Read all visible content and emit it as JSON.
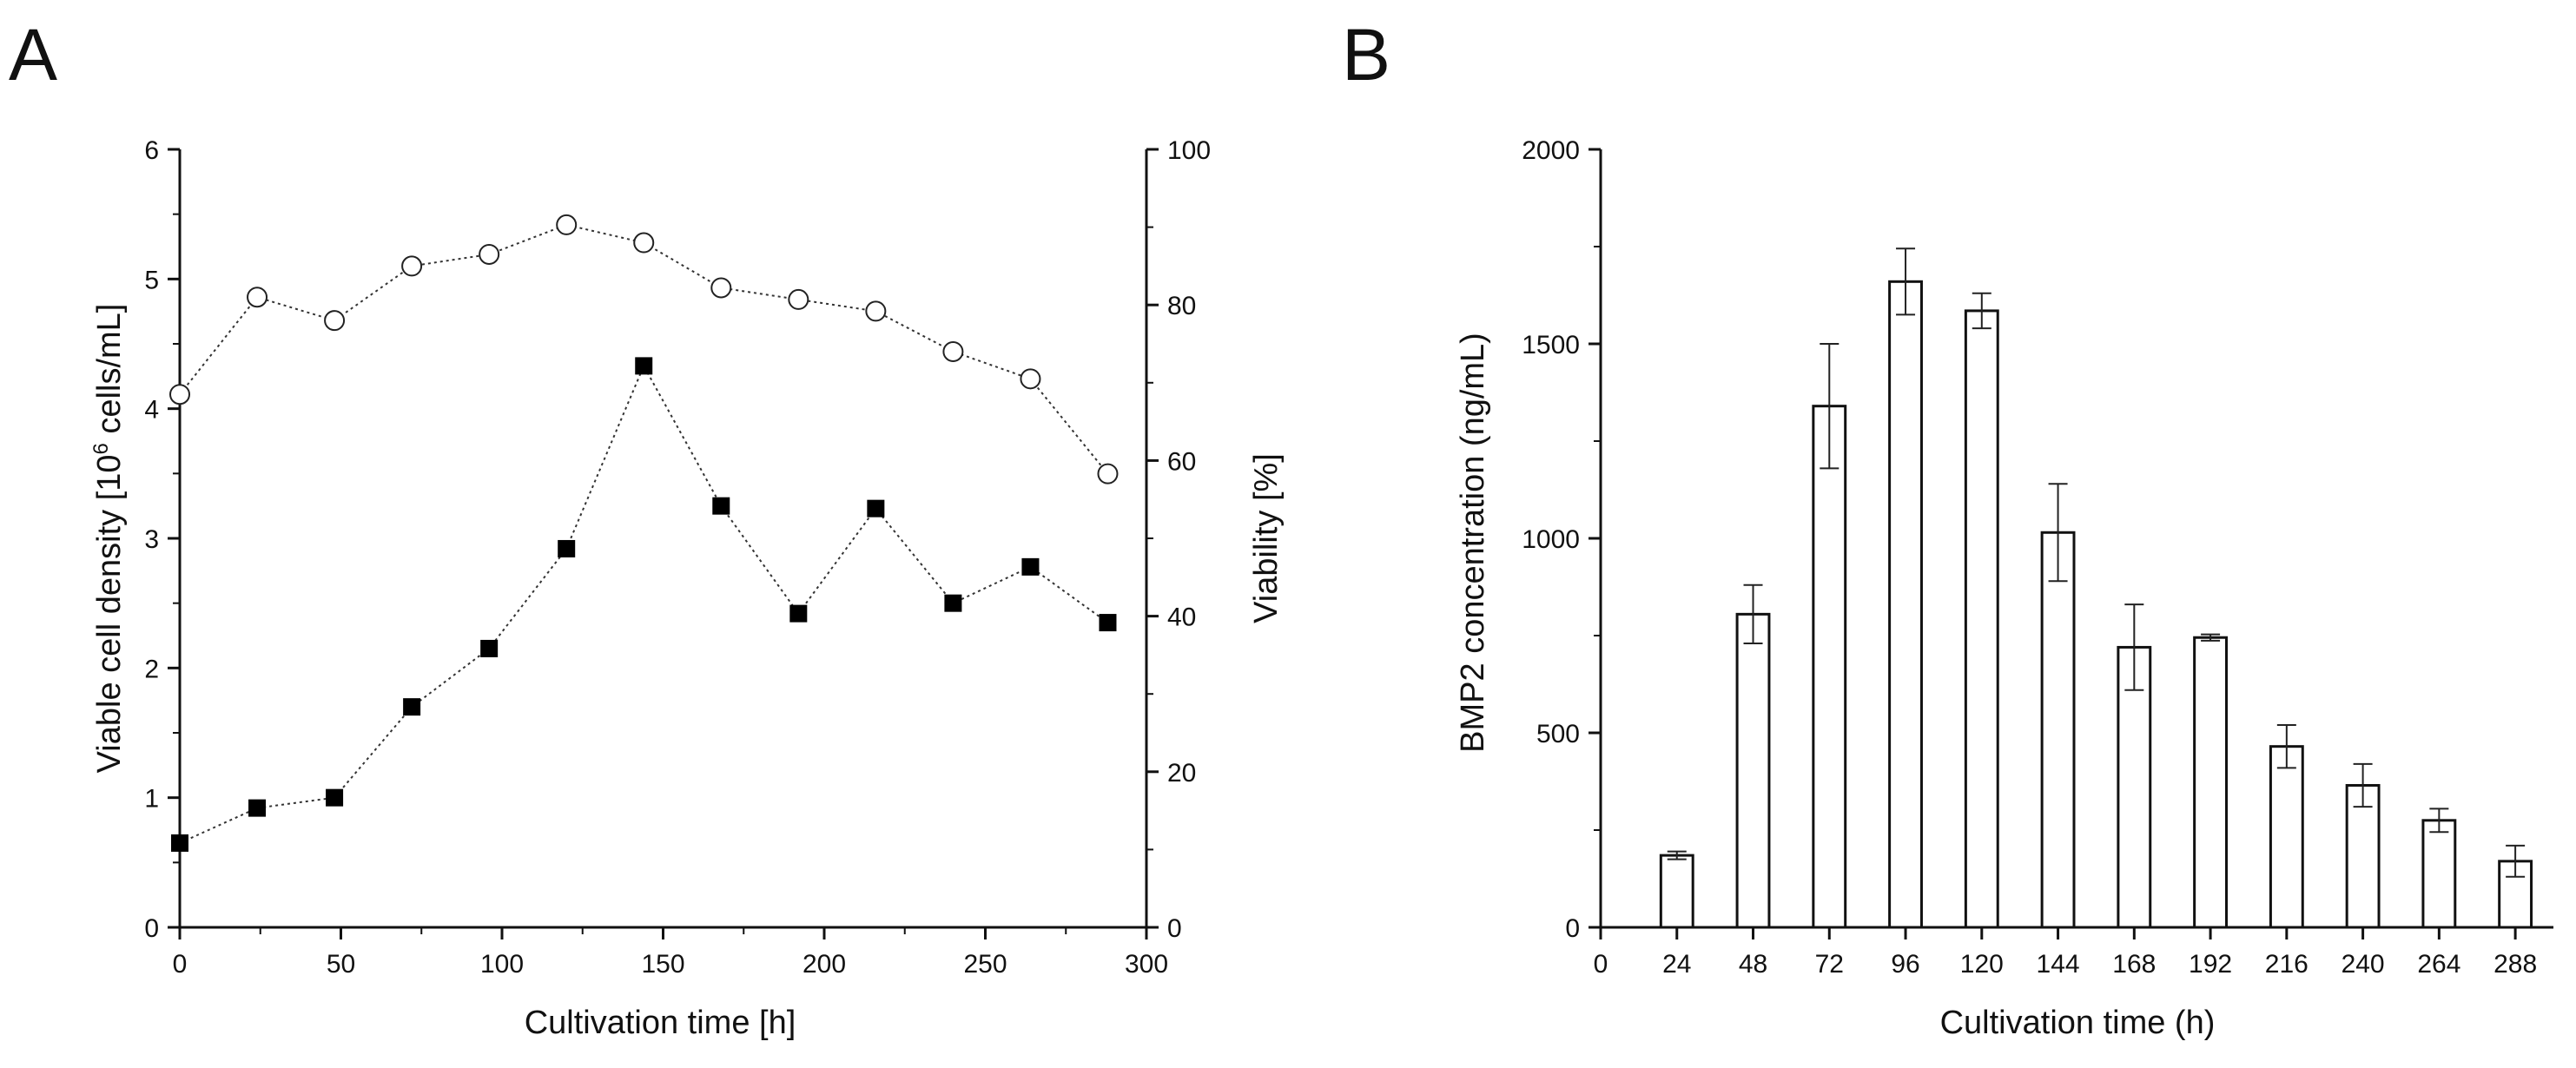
{
  "chart_data": [
    {
      "panel": "A",
      "type": "line",
      "xlabel": "Cultivation time [h]",
      "ylabel_left": "Viable cell density [10",
      "ylabel_left_sup": "6",
      "ylabel_left_tail": " cells/mL]",
      "ylabel_right": "Viability [%]",
      "xlim": [
        0,
        300
      ],
      "ylim_left": [
        0,
        6
      ],
      "ylim_right": [
        0,
        100
      ],
      "x_ticks": [
        "0",
        "50",
        "100",
        "150",
        "200",
        "250",
        "300"
      ],
      "y_left_ticks": [
        "0",
        "1",
        "2",
        "3",
        "4",
        "5",
        "6"
      ],
      "y_right_ticks": [
        "0",
        "20",
        "40",
        "60",
        "80",
        "100"
      ],
      "grid": false,
      "series": [
        {
          "name": "Viable cell density",
          "axis": "left",
          "marker": "filled-square",
          "line": "dotted",
          "x": [
            0,
            24,
            48,
            72,
            96,
            120,
            144,
            168,
            192,
            216,
            240,
            264,
            288
          ],
          "y": [
            0.65,
            0.92,
            1.0,
            1.7,
            2.15,
            2.92,
            4.33,
            3.25,
            2.42,
            3.23,
            2.5,
            2.78,
            2.35
          ]
        },
        {
          "name": "Viability",
          "axis": "right",
          "marker": "open-circle",
          "line": "dotted",
          "x": [
            0,
            24,
            48,
            72,
            96,
            120,
            144,
            168,
            192,
            216,
            240,
            264,
            288
          ],
          "y": [
            68.5,
            81,
            78,
            85,
            86.5,
            90.3,
            88,
            82.2,
            80.7,
            79.2,
            74,
            70.5,
            58.3
          ]
        }
      ]
    },
    {
      "panel": "B",
      "type": "bar",
      "xlabel": "Cultivation time (h)",
      "ylabel": "BMP2 concentration (ng/mL)",
      "ylim": [
        0,
        2000
      ],
      "xlim": [
        0,
        300
      ],
      "x_ticks": [
        "0",
        "24",
        "48",
        "72",
        "96",
        "120",
        "144",
        "168",
        "192",
        "216",
        "240",
        "264",
        "288"
      ],
      "y_ticks": [
        "0",
        "500",
        "1000",
        "1500",
        "2000"
      ],
      "grid": false,
      "x": [
        24,
        48,
        72,
        96,
        120,
        144,
        168,
        192,
        216,
        240,
        264,
        288
      ],
      "values": [
        185,
        805,
        1340,
        1660,
        1585,
        1015,
        720,
        745,
        465,
        365,
        275,
        170
      ],
      "errors": [
        10,
        75,
        160,
        85,
        45,
        125,
        110,
        8,
        55,
        55,
        30,
        40
      ]
    }
  ]
}
